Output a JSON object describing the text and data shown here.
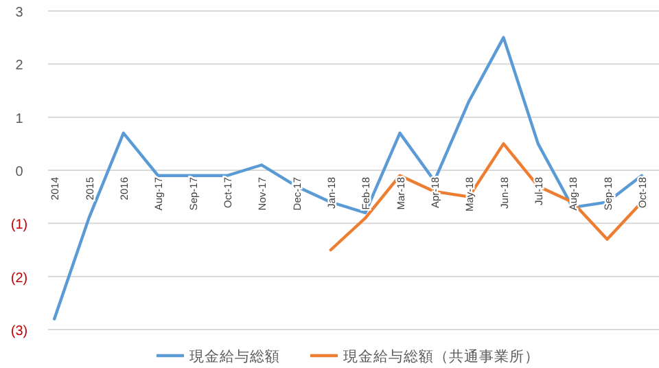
{
  "chart_data": {
    "type": "line",
    "categories": [
      "2014",
      "2015",
      "2016",
      "Aug-17",
      "Sep-17",
      "Oct-17",
      "Nov-17",
      "Dec-17",
      "Jan-18",
      "Feb-18",
      "Mar-18",
      "Apr-18",
      "May-18",
      "Jun-18",
      "Jul-18",
      "Aug-18",
      "Sep-18",
      "Oct-18"
    ],
    "series": [
      {
        "name": "現金給与総額",
        "color": "#5b9bd5",
        "values": [
          -2.8,
          -0.9,
          0.7,
          -0.1,
          -0.1,
          -0.1,
          0.1,
          -0.3,
          -0.6,
          -0.8,
          0.7,
          -0.2,
          1.3,
          2.5,
          0.5,
          -0.7,
          -0.6,
          -0.1
        ]
      },
      {
        "name": "現金給与総額（共通事業所）",
        "color": "#ed7d31",
        "values": [
          null,
          null,
          null,
          null,
          null,
          null,
          null,
          null,
          -1.5,
          -0.9,
          -0.1,
          -0.4,
          -0.5,
          0.5,
          -0.3,
          -0.6,
          -1.3,
          -0.6
        ]
      }
    ],
    "ylim": [
      -3,
      3
    ],
    "yticks": [
      {
        "value": -3,
        "label": "(3)"
      },
      {
        "value": -2,
        "label": "(2)"
      },
      {
        "value": -1,
        "label": "(1)"
      },
      0,
      1,
      2,
      3
    ],
    "grid": "y",
    "legend": "bottom",
    "marker": "none",
    "line_style": "solid"
  }
}
